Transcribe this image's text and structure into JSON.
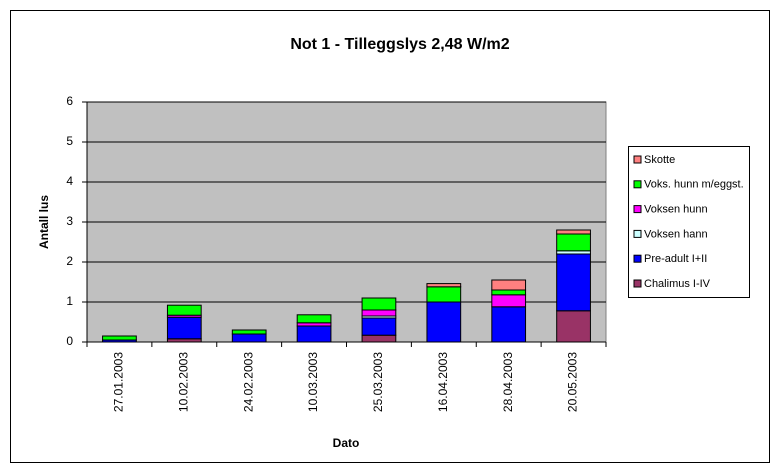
{
  "chart_data": {
    "type": "stacked_bar",
    "title": "Not 1 - Tilleggslys 2,48 W/m2",
    "x_label": "Dato",
    "y_label": "Antall lus",
    "categories": [
      "27.01.2003",
      "10.02.2003",
      "24.02.2003",
      "10.03.2003",
      "25.03.2003",
      "16.04.2003",
      "28.04.2003",
      "20.05.2003"
    ],
    "series": [
      {
        "name": "Chalimus I-IV",
        "color": "#993366",
        "values": [
          0,
          0.08,
          0,
          0,
          0.17,
          0,
          0,
          0.78
        ]
      },
      {
        "name": "Pre-adult I+II",
        "color": "#0000FF",
        "values": [
          0.05,
          0.54,
          0.2,
          0.4,
          0.43,
          1.0,
          0.88,
          1.42
        ]
      },
      {
        "name": "Voksen hann",
        "color": "#CCFFFF",
        "values": [
          0,
          0,
          0,
          0,
          0.05,
          0,
          0,
          0.08
        ]
      },
      {
        "name": "Voksen hunn",
        "color": "#FF00FF",
        "values": [
          0,
          0.05,
          0,
          0.08,
          0.15,
          0,
          0.3,
          0
        ]
      },
      {
        "name": "Voks. hunn m/eggst.",
        "color": "#00FF00",
        "values": [
          0.1,
          0.25,
          0.1,
          0.2,
          0.3,
          0.38,
          0.12,
          0.42
        ]
      },
      {
        "name": "Skotte",
        "color": "#FF8080",
        "values": [
          0,
          0,
          0,
          0,
          0,
          0.08,
          0.25,
          0.1
        ]
      }
    ],
    "ylim": [
      0,
      6
    ],
    "yticks": [
      0,
      1,
      2,
      3,
      4,
      5,
      6
    ],
    "grid": true,
    "legend": "right"
  }
}
